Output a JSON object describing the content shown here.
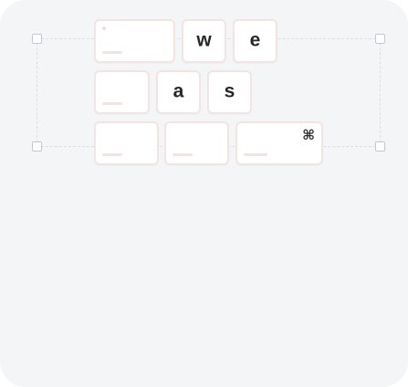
{
  "keyboard": {
    "row1": {
      "key_w": "w",
      "key_e": "e"
    },
    "row2": {
      "key_a": "a",
      "key_s": "s"
    },
    "row3": {
      "command_symbol": "⌘"
    }
  },
  "icons": {
    "command": "command-key-icon"
  },
  "colors": {
    "background": "#f4f5f7",
    "key_fill": "#ffffff",
    "key_border": "#f3e3e1",
    "selection_border": "#dcdee3",
    "text": "#25272b"
  }
}
